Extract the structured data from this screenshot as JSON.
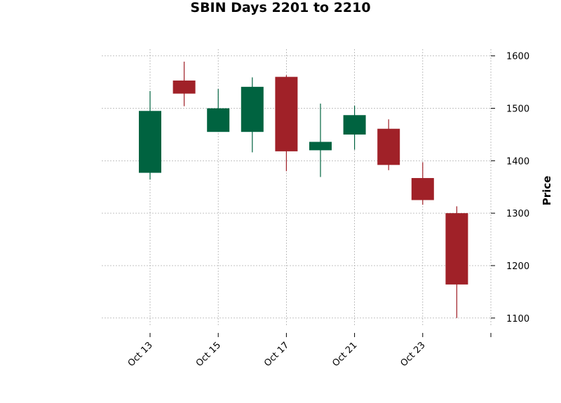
{
  "chart_data": {
    "type": "candlestick",
    "title": "SBIN Days 2201 to 2210",
    "xlabel": "",
    "ylabel": "Price",
    "ylim": [
      1085,
      1613
    ],
    "y_ticks": [
      1100,
      1200,
      1300,
      1400,
      1500,
      1600
    ],
    "y_axis_side": "right",
    "grid": true,
    "colors": {
      "up": "#006340",
      "down": "#a02128",
      "grid": "#b0b0b0"
    },
    "x_tick_labels": [
      "Oct 13",
      "Oct 15",
      "Oct 17",
      "Oct 21",
      "Oct 23",
      ""
    ],
    "candles": [
      {
        "date": "Oct 13",
        "open": 1377,
        "high": 1533,
        "low": 1364,
        "close": 1495
      },
      {
        "date": "Oct 14",
        "open": 1553,
        "high": 1589,
        "low": 1504,
        "close": 1528
      },
      {
        "date": "Oct 15",
        "open": 1455,
        "high": 1537,
        "low": 1455,
        "close": 1500
      },
      {
        "date": "Oct 16",
        "open": 1455,
        "high": 1559,
        "low": 1416,
        "close": 1541
      },
      {
        "date": "Oct 17",
        "open": 1560,
        "high": 1563,
        "low": 1380,
        "close": 1418
      },
      {
        "date": "Oct 20",
        "open": 1420,
        "high": 1509,
        "low": 1369,
        "close": 1436
      },
      {
        "date": "Oct 21",
        "open": 1450,
        "high": 1505,
        "low": 1421,
        "close": 1487
      },
      {
        "date": "Oct 22",
        "open": 1461,
        "high": 1479,
        "low": 1382,
        "close": 1392
      },
      {
        "date": "Oct 23",
        "open": 1367,
        "high": 1397,
        "low": 1316,
        "close": 1325
      },
      {
        "date": "Oct 24",
        "open": 1300,
        "high": 1313,
        "low": 1100,
        "close": 1164
      }
    ]
  }
}
